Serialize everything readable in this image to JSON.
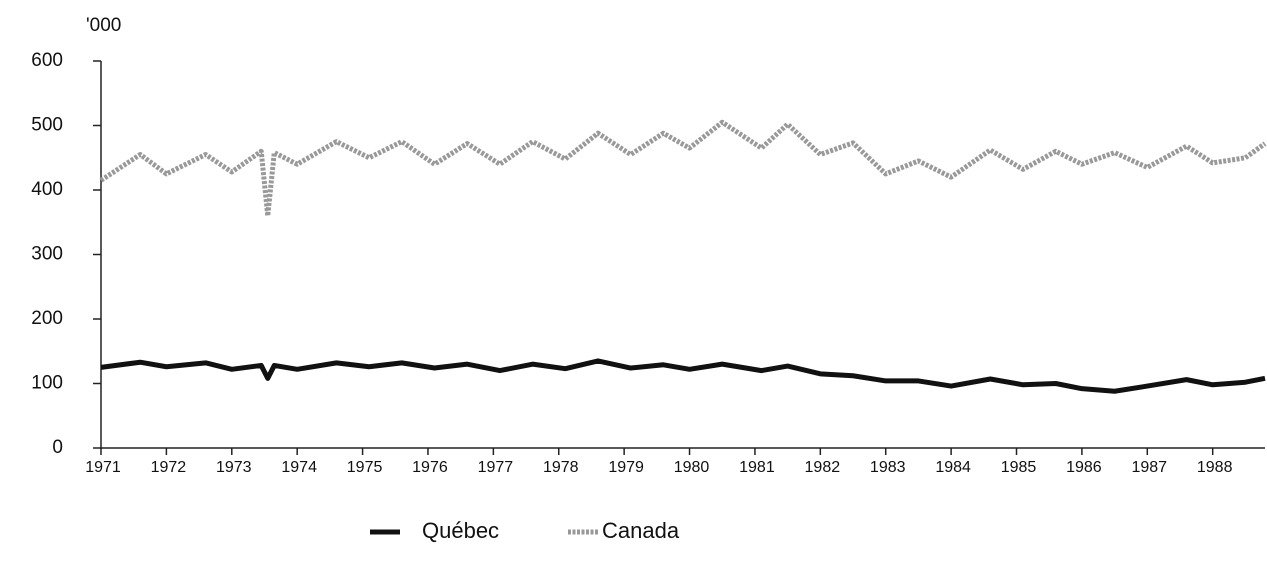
{
  "chart_data": {
    "type": "line",
    "y_label": "'000",
    "x": [
      1971.0,
      1971.6,
      1972.0,
      1972.6,
      1973.0,
      1973.45,
      1973.55,
      1973.65,
      1974.0,
      1974.6,
      1975.1,
      1975.6,
      1976.1,
      1976.6,
      1977.1,
      1977.6,
      1978.1,
      1978.6,
      1979.1,
      1979.6,
      1980.0,
      1980.5,
      1981.1,
      1981.5,
      1982.0,
      1982.5,
      1983.0,
      1983.5,
      1984.0,
      1984.6,
      1985.1,
      1985.6,
      1986.0,
      1986.5,
      1987.0,
      1987.6,
      1988.0,
      1988.5,
      1988.8
    ],
    "series": [
      {
        "name": "Québec",
        "color": "#111111",
        "values": [
          125,
          133,
          126,
          132,
          122,
          128,
          108,
          128,
          122,
          132,
          126,
          132,
          124,
          130,
          120,
          130,
          123,
          135,
          124,
          129,
          122,
          130,
          120,
          127,
          115,
          112,
          104,
          104,
          96,
          107,
          98,
          100,
          92,
          88,
          96,
          106,
          98,
          102,
          108
        ]
      },
      {
        "name": "Canada",
        "color": "#999999",
        "values": [
          415,
          455,
          425,
          455,
          428,
          460,
          360,
          458,
          440,
          475,
          450,
          475,
          440,
          472,
          440,
          475,
          448,
          488,
          455,
          488,
          465,
          505,
          465,
          502,
          455,
          473,
          425,
          445,
          420,
          462,
          432,
          460,
          440,
          458,
          435,
          468,
          442,
          450,
          472
        ]
      }
    ],
    "xlim": [
      1971,
      1988.8
    ],
    "xticks": [
      1971,
      1972,
      1973,
      1974,
      1975,
      1976,
      1977,
      1978,
      1979,
      1980,
      1981,
      1982,
      1983,
      1984,
      1985,
      1986,
      1987,
      1988
    ],
    "ylim": [
      0,
      600
    ],
    "yticks": [
      0,
      100,
      200,
      300,
      400,
      500,
      600
    ],
    "grid": false,
    "legend": "bottom"
  }
}
